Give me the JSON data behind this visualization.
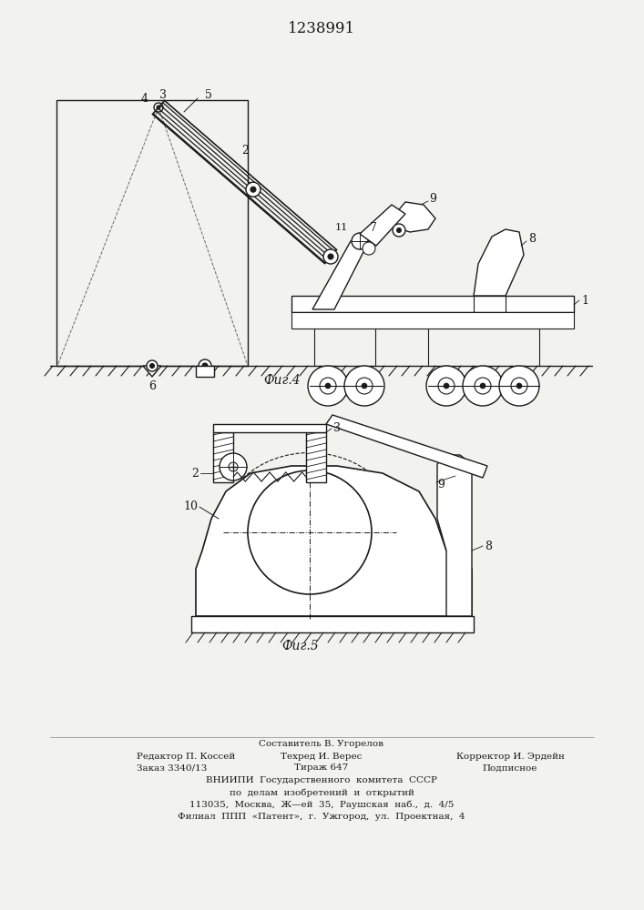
{
  "title": "1238991",
  "fig4_label": "Фиг.4",
  "fig5_label": "Фиг.5",
  "footer_line1": "Составитель В. Угорелов",
  "footer_line2_left": "Редактор П. Коссей",
  "footer_line2_mid": "Техред И. Верес",
  "footer_line2_right": "Корректор И. Эрдейн",
  "footer_line3_left": "Заказ 3340/13",
  "footer_line3_mid": "Тираж 647",
  "footer_line3_right": "Подписное",
  "footer_line4": "ВНИИПИ  Государственного  комитета  СССР",
  "footer_line5": "по  делам  изобретений  и  открытий",
  "footer_line6": "113035,  Москва,  Ж—ей  35,  Раушская  наб.,  д.  4/5",
  "footer_line7": "Филиал  ППП  «Патент»,  г.  Ужгород,  ул.  Проектная,  4",
  "bg_color": "#f2f2ee",
  "line_color": "#1a1a1a"
}
